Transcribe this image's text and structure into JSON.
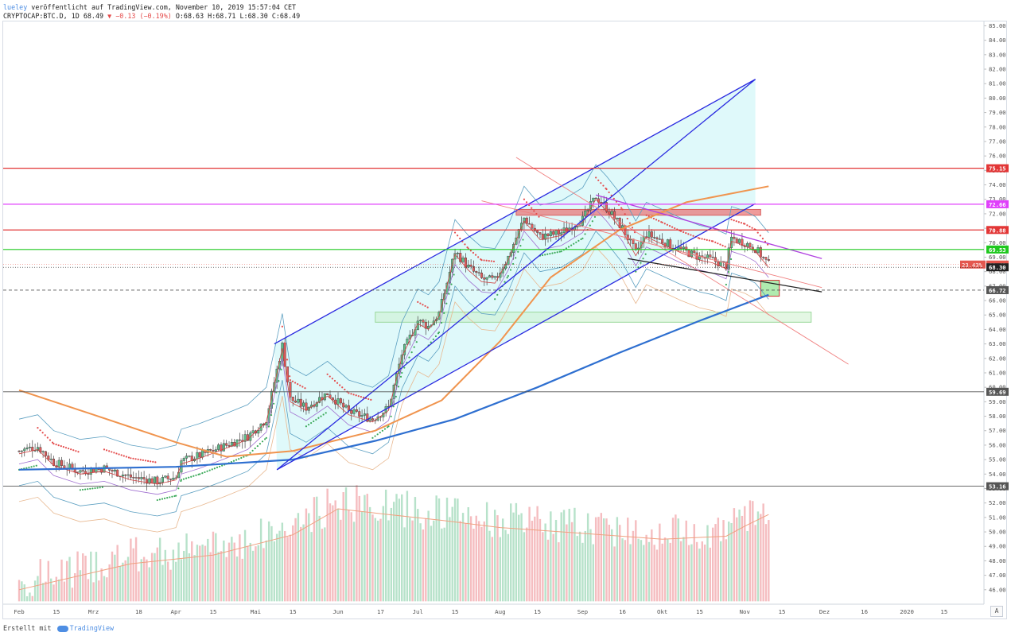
{
  "header": {
    "publisher": "lueley",
    "published_text": " veröffentlicht auf TradingView.com, November 10, 2019 15:57:04 CET",
    "symbol_text": "CRYPTOCAP:BTC.D, 1D 68.49 ",
    "change_text": "▼ −0.13 (−0.19%)",
    "ohlc_text": " O:68.63 H:68.71 L:68.30 C:68.49"
  },
  "footer": {
    "created_with": "Erstellt mit",
    "brand": "TradingView"
  },
  "auto_button": "A",
  "chart_data": {
    "type": "candlestick",
    "symbol": "CRYPTOCAP:BTC.D",
    "interval": "1D",
    "ylim": [
      45.0,
      85.3
    ],
    "y_ticks": [
      "46.00",
      "47.00",
      "48.00",
      "49.00",
      "50.00",
      "51.00",
      "52.00",
      "53.00",
      "54.00",
      "55.00",
      "56.00",
      "57.00",
      "58.00",
      "59.00",
      "60.00",
      "61.00",
      "62.00",
      "63.00",
      "64.00",
      "65.00",
      "66.00",
      "67.00",
      "68.00",
      "69.00",
      "70.00",
      "71.00",
      "72.00",
      "73.00",
      "74.00",
      "75.00",
      "76.00",
      "77.00",
      "78.00",
      "79.00",
      "80.00",
      "81.00",
      "82.00",
      "83.00",
      "84.00",
      "85.00"
    ],
    "x_labels": [
      {
        "d": "2019-02-01",
        "t": "Feb"
      },
      {
        "d": "2019-02-15",
        "t": "15"
      },
      {
        "d": "2019-03-01",
        "t": "Mrz"
      },
      {
        "d": "2019-03-18",
        "t": "18"
      },
      {
        "d": "2019-04-01",
        "t": "Apr"
      },
      {
        "d": "2019-04-15",
        "t": "15"
      },
      {
        "d": "2019-05-01",
        "t": "Mai"
      },
      {
        "d": "2019-05-15",
        "t": "15"
      },
      {
        "d": "2019-06-01",
        "t": "Jun"
      },
      {
        "d": "2019-06-17",
        "t": "17"
      },
      {
        "d": "2019-07-01",
        "t": "Jul"
      },
      {
        "d": "2019-07-15",
        "t": "15"
      },
      {
        "d": "2019-08-01",
        "t": "Aug"
      },
      {
        "d": "2019-08-15",
        "t": "15"
      },
      {
        "d": "2019-09-01",
        "t": "Sep"
      },
      {
        "d": "2019-09-16",
        "t": "16"
      },
      {
        "d": "2019-10-01",
        "t": "Okt"
      },
      {
        "d": "2019-10-15",
        "t": "15"
      },
      {
        "d": "2019-11-01",
        "t": "Nov"
      },
      {
        "d": "2019-11-15",
        "t": "15"
      },
      {
        "d": "2019-12-01",
        "t": "Dez"
      },
      {
        "d": "2019-12-16",
        "t": "16"
      },
      {
        "d": "2020-01-01",
        "t": "2020"
      },
      {
        "d": "2020-01-15",
        "t": "15"
      }
    ],
    "price_path": [
      [
        "2019-02-01",
        55.6
      ],
      [
        "2019-02-08",
        55.9
      ],
      [
        "2019-02-14",
        54.8
      ],
      [
        "2019-02-24",
        54.2
      ],
      [
        "2019-03-05",
        54.4
      ],
      [
        "2019-03-15",
        53.8
      ],
      [
        "2019-03-25",
        53.5
      ],
      [
        "2019-04-01",
        53.8
      ],
      [
        "2019-04-03",
        54.9
      ],
      [
        "2019-04-10",
        55.3
      ],
      [
        "2019-04-20",
        56.0
      ],
      [
        "2019-04-28",
        56.6
      ],
      [
        "2019-05-05",
        57.8
      ],
      [
        "2019-05-11",
        62.9
      ],
      [
        "2019-05-14",
        59.2
      ],
      [
        "2019-05-20",
        58.6
      ],
      [
        "2019-05-28",
        59.6
      ],
      [
        "2019-06-05",
        58.3
      ],
      [
        "2019-06-14",
        57.8
      ],
      [
        "2019-06-20",
        58.6
      ],
      [
        "2019-06-25",
        62.3
      ],
      [
        "2019-07-01",
        64.6
      ],
      [
        "2019-07-05",
        64.2
      ],
      [
        "2019-07-09",
        65.1
      ],
      [
        "2019-07-15",
        69.4
      ],
      [
        "2019-07-20",
        68.3
      ],
      [
        "2019-07-25",
        67.5
      ],
      [
        "2019-07-30",
        67.4
      ],
      [
        "2019-08-04",
        69.0
      ],
      [
        "2019-08-10",
        71.7
      ],
      [
        "2019-08-16",
        70.4
      ],
      [
        "2019-08-24",
        70.7
      ],
      [
        "2019-09-01",
        71.6
      ],
      [
        "2019-09-06",
        73.2
      ],
      [
        "2019-09-10",
        72.4
      ],
      [
        "2019-09-16",
        71.0
      ],
      [
        "2019-09-21",
        69.3
      ],
      [
        "2019-09-25",
        70.6
      ],
      [
        "2019-10-01",
        70.1
      ],
      [
        "2019-10-08",
        69.5
      ],
      [
        "2019-10-15",
        69.0
      ],
      [
        "2019-10-20",
        68.8
      ],
      [
        "2019-10-25",
        68.4
      ],
      [
        "2019-10-27",
        70.3
      ],
      [
        "2019-11-01",
        70.0
      ],
      [
        "2019-11-05",
        69.6
      ],
      [
        "2019-11-10",
        68.49
      ]
    ],
    "indicators": {
      "sma_200_blue": [
        [
          "2019-02-01",
          54.3
        ],
        [
          "2019-04-01",
          54.5
        ],
        [
          "2019-05-15",
          55.0
        ],
        [
          "2019-06-15",
          56.3
        ],
        [
          "2019-07-15",
          57.8
        ],
        [
          "2019-08-15",
          60.0
        ],
        [
          "2019-09-15",
          62.4
        ],
        [
          "2019-10-15",
          64.6
        ],
        [
          "2019-11-10",
          66.4
        ]
      ],
      "sma_orange": [
        [
          "2019-02-01",
          59.8
        ],
        [
          "2019-03-01",
          58.1
        ],
        [
          "2019-04-01",
          56.2
        ],
        [
          "2019-04-20",
          55.2
        ],
        [
          "2019-05-15",
          55.6
        ],
        [
          "2019-06-15",
          57.0
        ],
        [
          "2019-07-10",
          59.1
        ],
        [
          "2019-08-01",
          63.2
        ],
        [
          "2019-08-20",
          67.6
        ],
        [
          "2019-09-15",
          70.9
        ],
        [
          "2019-10-10",
          72.8
        ],
        [
          "2019-11-10",
          73.9
        ]
      ],
      "volume_sma": [
        [
          "2019-02-01",
          46.0
        ],
        [
          "2019-03-15",
          47.8
        ],
        [
          "2019-04-15",
          48.4
        ],
        [
          "2019-05-15",
          49.8
        ],
        [
          "2019-06-01",
          51.6
        ],
        [
          "2019-06-20",
          51.2
        ],
        [
          "2019-07-10",
          50.8
        ],
        [
          "2019-08-01",
          50.3
        ],
        [
          "2019-09-01",
          49.9
        ],
        [
          "2019-10-01",
          49.5
        ],
        [
          "2019-10-25",
          49.7
        ],
        [
          "2019-11-01",
          50.4
        ],
        [
          "2019-11-10",
          51.2
        ]
      ]
    },
    "horizontal_levels": [
      {
        "value": 75.15,
        "label": "75.15",
        "color": "#e23636"
      },
      {
        "value": 72.66,
        "label": "72.66",
        "color": "#e040fb"
      },
      {
        "value": 70.88,
        "label": "70.88",
        "color": "#e23636"
      },
      {
        "value": 69.53,
        "label": "69.53",
        "color": "#1ec81e"
      },
      {
        "value": 66.72,
        "label": "66.72",
        "color": "#555555"
      },
      {
        "value": 59.69,
        "label": "59.69",
        "color": "#555555"
      },
      {
        "value": 53.16,
        "label": "53.16",
        "color": "#555555"
      }
    ],
    "price_tags": [
      {
        "value": 68.49,
        "label": "68.49",
        "color": "#e4574e",
        "pct": "23.43%"
      },
      {
        "value": 68.3,
        "label": "68.30",
        "color": "#222222"
      }
    ],
    "trend_lines": [
      {
        "from": [
          "2019-05-09",
          54.3
        ],
        "to": [
          "2019-11-05",
          81.3
        ],
        "color": "#2929e0"
      },
      {
        "from": [
          "2019-05-08",
          63.0
        ],
        "to": [
          "2019-11-05",
          81.3
        ],
        "color": "#2929e0"
      },
      {
        "from": [
          "2019-05-09",
          54.3
        ],
        "to": [
          "2019-11-05",
          72.7
        ],
        "color": "#2929e0"
      },
      {
        "from": [
          "2019-09-06",
          73.3
        ],
        "to": [
          "2019-11-30",
          68.9
        ],
        "color": "#b040e0"
      },
      {
        "from": [
          "2019-09-18",
          68.9
        ],
        "to": [
          "2019-11-30",
          66.6
        ],
        "color": "#222222"
      },
      {
        "from": [
          "2019-08-07",
          75.9
        ],
        "to": [
          "2019-12-10",
          61.6
        ],
        "color": "#f08080"
      },
      {
        "from": [
          "2019-07-25",
          72.9
        ],
        "to": [
          "2019-11-30",
          66.9
        ],
        "color": "#f08080"
      }
    ],
    "zones": [
      {
        "from": [
          "2019-08-07",
          72.3
        ],
        "to": [
          "2019-11-07",
          71.9
        ],
        "color": "#e87070"
      },
      {
        "from": [
          "2019-06-15",
          65.2
        ],
        "to": [
          "2019-11-26",
          64.5
        ],
        "color": "#c9f0c9"
      },
      {
        "from": [
          "2019-11-07",
          67.4
        ],
        "to": [
          "2019-11-14",
          66.3
        ],
        "color": "#8de28d"
      }
    ]
  }
}
